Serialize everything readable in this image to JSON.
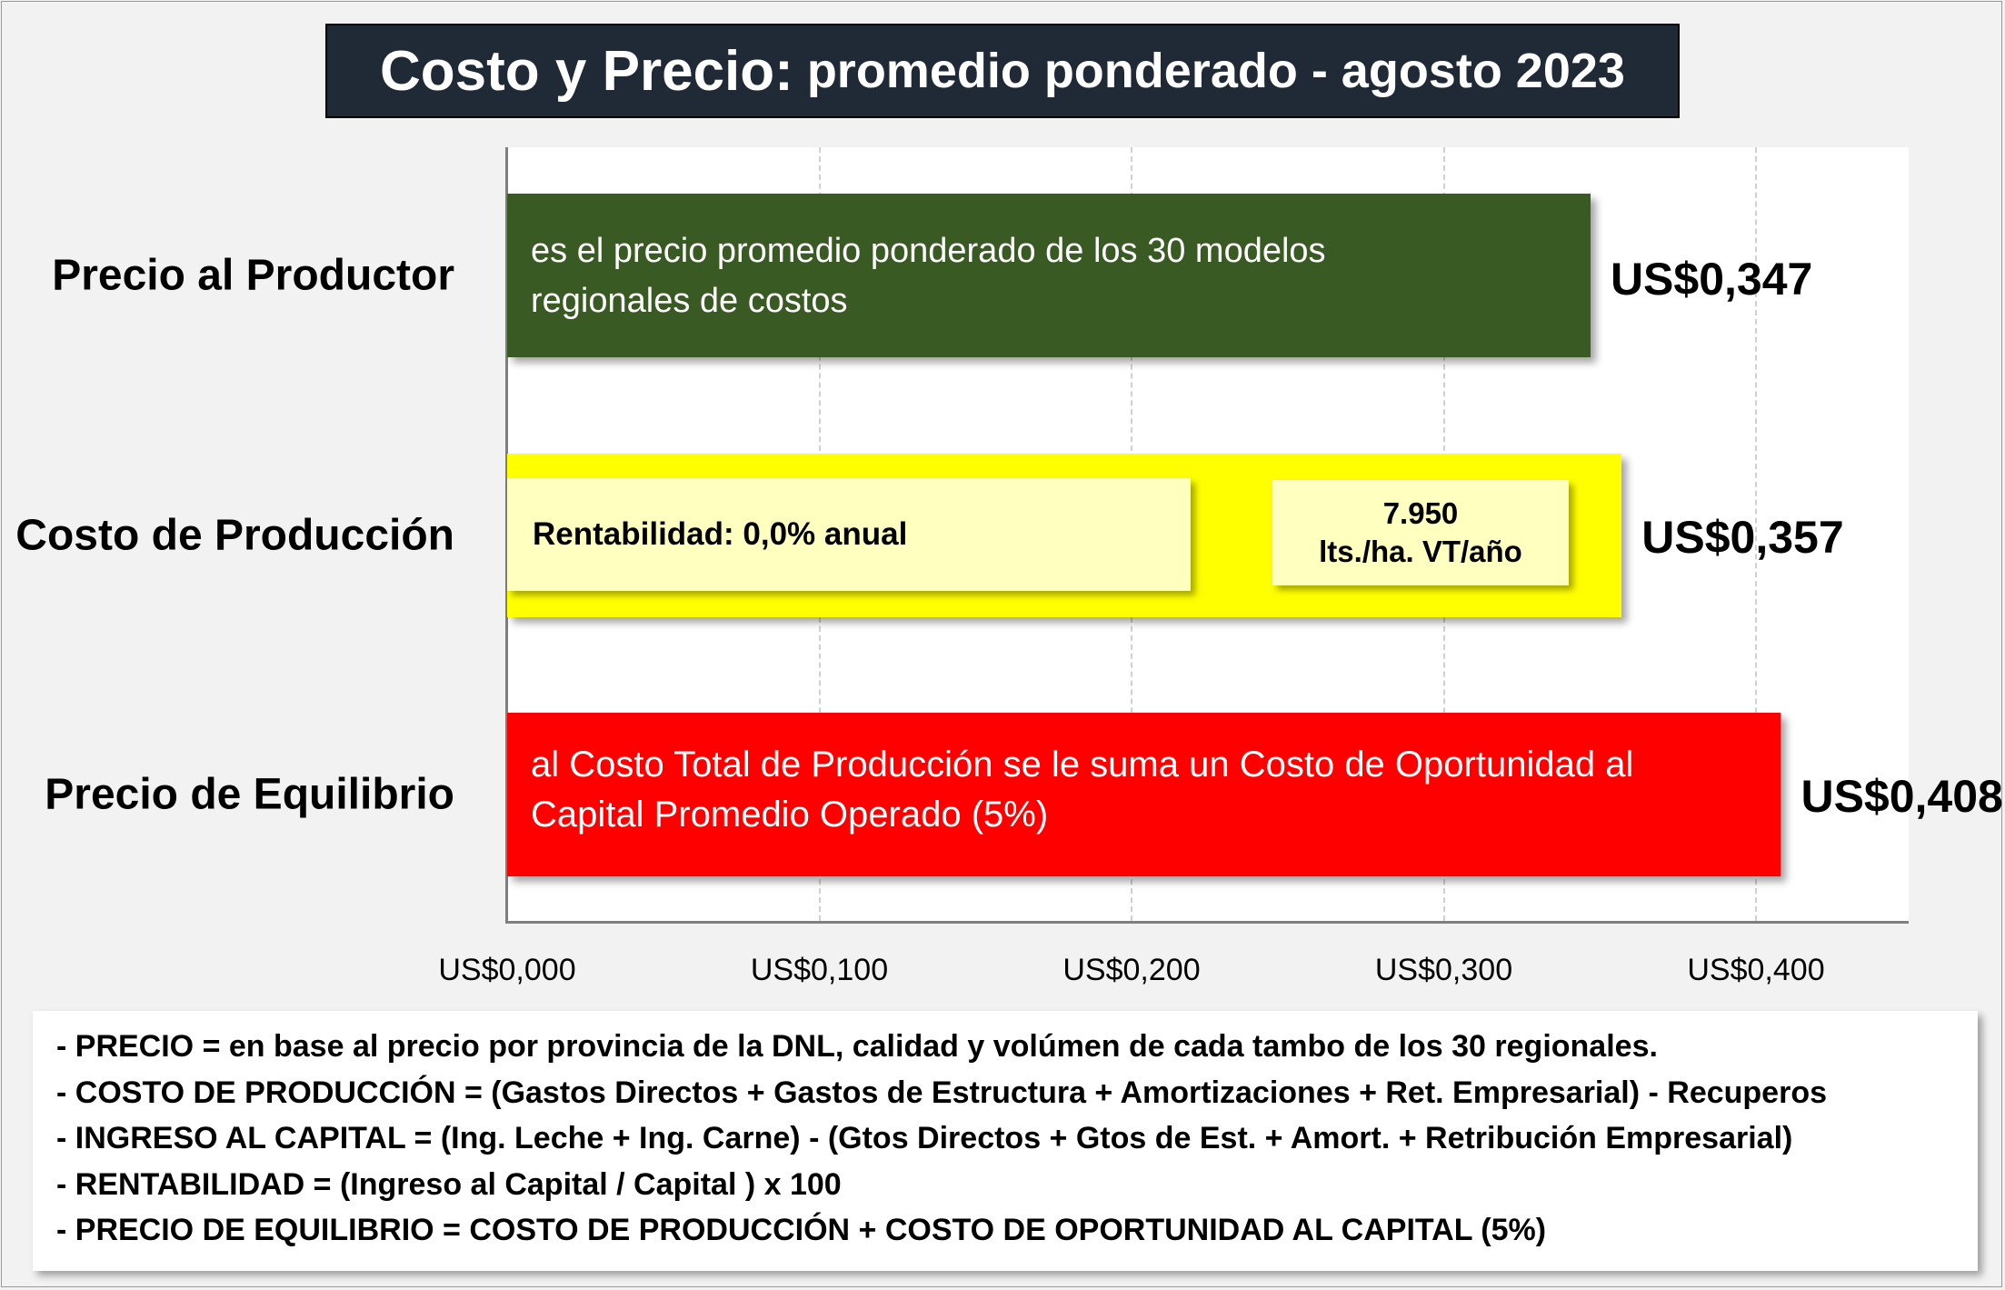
{
  "title": {
    "main": "Costo  y Precio:",
    "sub": " promedio ponderado - agosto 2023"
  },
  "chart_data": {
    "type": "bar",
    "orientation": "horizontal",
    "categories": [
      "Precio al Productor",
      "Costo de Producción",
      "Precio de Equilibrio"
    ],
    "values": [
      0.347,
      0.357,
      0.408
    ],
    "value_labels": [
      "US$0,347",
      "US$0,357",
      "US$0,408"
    ],
    "colors": [
      "#3a5a24",
      "#ffff00",
      "#ff0000"
    ],
    "xlim": [
      0,
      0.45
    ],
    "x_ticks": [
      0,
      0.1,
      0.2,
      0.3,
      0.4
    ],
    "x_tick_labels": [
      "US$0,000",
      "US$0,100",
      "US$0,200",
      "US$0,300",
      "US$0,400"
    ],
    "grid": "vertical dashed",
    "annotations": {
      "productor": "es el precio promedio ponderado de los 30 modelos regionales de costos",
      "rentabilidad": "Rentabilidad: 0,0% anual",
      "volumen_line1": "7.950",
      "volumen_line2": "lts./ha. VT/año",
      "equilibrio": "al Costo Total de Producción se le suma un Costo de Oportunidad al Capital Promedio Operado (5%)"
    }
  },
  "notes": [
    "- PRECIO = en base al precio por provincia de la DNL, calidad y volúmen de cada tambo de los 30 regionales.",
    "- COSTO DE PRODUCCIÓN = (Gastos Directos + Gastos de Estructura + Amortizaciones + Ret. Empresarial) - Recuperos",
    "- INGRESO AL CAPITAL = (Ing. Leche + Ing. Carne) - (Gtos Directos + Gtos de Est. + Amort. + Retribución Empresarial)",
    "- RENTABILIDAD = (Ingreso al Capital / Capital ) x 100",
    "- PRECIO DE EQUILIBRIO = COSTO DE PRODUCCIÓN + COSTO DE OPORTUNIDAD AL CAPITAL (5%)"
  ]
}
